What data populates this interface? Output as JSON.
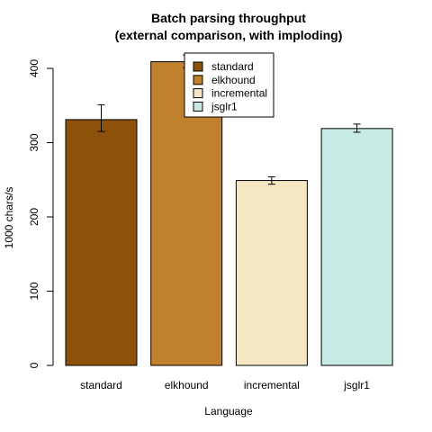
{
  "chart_data": {
    "type": "bar",
    "title": "Batch parsing throughput",
    "subtitle": "(external comparison, with imploding)",
    "xlabel": "Language",
    "ylabel": "1000 chars/s",
    "ylim": [
      0,
      400
    ],
    "yticks": [
      0,
      100,
      200,
      300,
      400
    ],
    "categories": [
      "standard",
      "elkhound",
      "incremental",
      "jsglr1"
    ],
    "values": [
      331,
      409,
      249,
      319
    ],
    "error_low": [
      315,
      401,
      244,
      314
    ],
    "error_high": [
      351,
      418,
      254,
      325
    ],
    "colors": [
      "#8c510a",
      "#bf812d",
      "#f6e8c3",
      "#c7eae5"
    ],
    "legend": {
      "position": "top-center",
      "entries": [
        "standard",
        "elkhound",
        "incremental",
        "jsglr1"
      ]
    },
    "grid": false
  }
}
